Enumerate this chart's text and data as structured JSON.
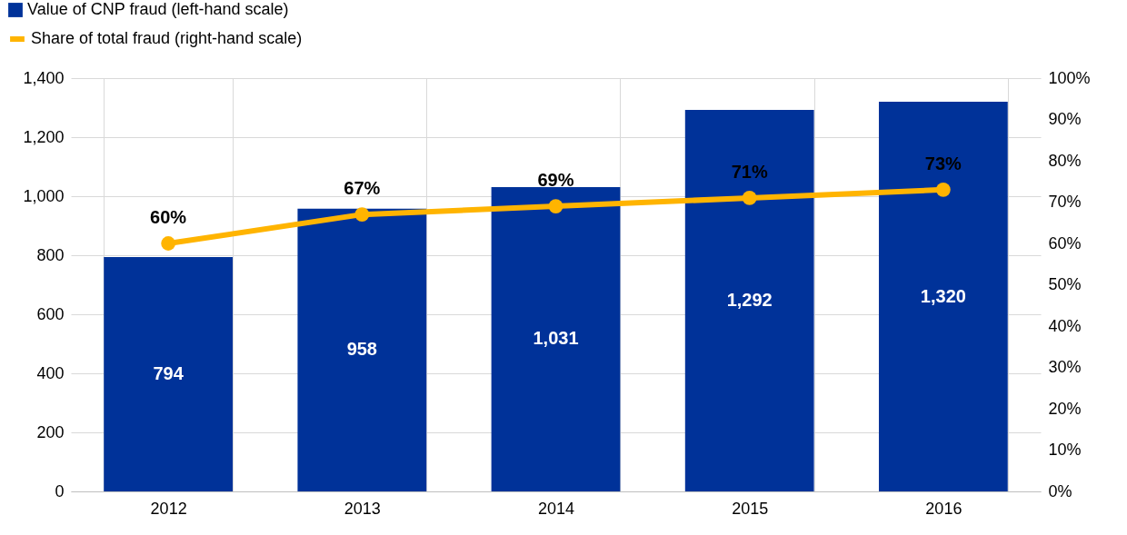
{
  "chart_data": {
    "type": "bar",
    "categories": [
      "2012",
      "2013",
      "2014",
      "2015",
      "2016"
    ],
    "series": [
      {
        "name": "Value of CNP fraud (left-hand scale)",
        "type": "bar",
        "color": "#003299",
        "values": [
          794,
          958,
          1031,
          1292,
          1320
        ],
        "value_labels": [
          "794",
          "958",
          "1,031",
          "1,292",
          "1,320"
        ]
      },
      {
        "name": "Share of total fraud (right-hand scale)",
        "type": "line",
        "axis": "y2",
        "color": "#ffb400",
        "values": [
          60,
          67,
          69,
          71,
          73
        ],
        "value_labels": [
          "60%",
          "67%",
          "69%",
          "71%",
          "73%"
        ]
      }
    ],
    "ylim": [
      0,
      1400
    ],
    "yticks": [
      0,
      200,
      400,
      600,
      800,
      {
        "value": 1000,
        "label": "1,000"
      },
      {
        "value": 1200,
        "label": "1,200"
      },
      {
        "value": 1400,
        "label": "1,400"
      }
    ],
    "y2lim": [
      0,
      100
    ],
    "y2ticks": [
      {
        "value": 0,
        "label": "0%"
      },
      {
        "value": 10,
        "label": "10%"
      },
      {
        "value": 20,
        "label": "20%"
      },
      {
        "value": 30,
        "label": "30%"
      },
      {
        "value": 40,
        "label": "40%"
      },
      {
        "value": 50,
        "label": "50%"
      },
      {
        "value": 60,
        "label": "60%"
      },
      {
        "value": 70,
        "label": "70%"
      },
      {
        "value": 80,
        "label": "80%"
      },
      {
        "value": 90,
        "label": "90%"
      },
      {
        "value": 100,
        "label": "100%"
      }
    ],
    "grid": true,
    "legend": "top left",
    "marker": "circle",
    "line_style": "solid"
  }
}
